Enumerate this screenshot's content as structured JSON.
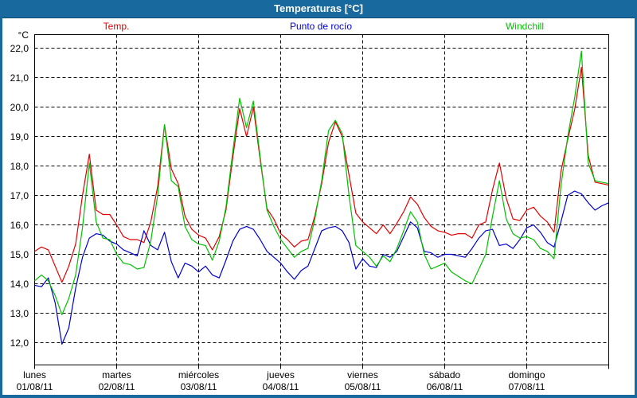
{
  "window": {
    "title": "Temperaturas [°C]"
  },
  "legend": {
    "position": "top",
    "items": [
      {
        "label": "Temp.",
        "color": "#e10000"
      },
      {
        "label": "Punto de rocío",
        "color": "#0000cc"
      },
      {
        "label": "Windchill",
        "color": "#00c000"
      }
    ]
  },
  "frame_color": "#17699e",
  "chart_data": {
    "type": "line",
    "title": "Temperaturas [°C]",
    "ylabel": "°C",
    "ylim": [
      12,
      22
    ],
    "yticks": [
      22,
      21,
      20,
      19,
      18,
      17,
      16,
      15,
      14,
      13,
      12
    ],
    "ytick_labels": [
      "22,0",
      "21,0",
      "20,0",
      "19,0",
      "18,0",
      "17,0",
      "16,0",
      "15,0",
      "14,0",
      "13,0",
      "12,0"
    ],
    "grid": "dashed",
    "legend_position": "top",
    "x_start_hour": 0,
    "x_end_hour": 168,
    "sample_interval_hours": 2,
    "days": [
      {
        "name": "lunes",
        "date": "01/08/11"
      },
      {
        "name": "martes",
        "date": "02/08/11"
      },
      {
        "name": "miércoles",
        "date": "03/08/11"
      },
      {
        "name": "jueves",
        "date": "04/08/11"
      },
      {
        "name": "viernes",
        "date": "05/08/11"
      },
      {
        "name": "sábado",
        "date": "06/08/11"
      },
      {
        "name": "domingo",
        "date": "07/08/11"
      }
    ],
    "series": [
      {
        "name": "Temp.",
        "color": "#e10000",
        "values": [
          15.1,
          15.25,
          15.15,
          14.6,
          14.05,
          14.6,
          15.35,
          17.0,
          18.4,
          16.5,
          16.35,
          16.35,
          16.0,
          15.6,
          15.5,
          15.5,
          15.4,
          16.1,
          17.3,
          19.4,
          17.9,
          17.4,
          16.3,
          15.85,
          15.65,
          15.55,
          15.15,
          15.6,
          16.5,
          18.3,
          19.95,
          19.0,
          20.0,
          18.2,
          16.55,
          16.2,
          15.7,
          15.5,
          15.25,
          15.45,
          15.5,
          16.3,
          17.4,
          18.8,
          19.5,
          19.0,
          17.7,
          16.4,
          16.1,
          15.9,
          15.7,
          16.0,
          15.7,
          16.05,
          16.45,
          16.95,
          16.7,
          16.25,
          15.95,
          15.8,
          15.75,
          15.65,
          15.7,
          15.7,
          15.55,
          16.0,
          16.1,
          17.2,
          18.1,
          16.9,
          16.2,
          16.15,
          16.5,
          16.6,
          16.3,
          16.1,
          15.75,
          17.8,
          18.9,
          19.9,
          21.35,
          18.35,
          17.45,
          17.4,
          17.35
        ]
      },
      {
        "name": "Punto de rocío",
        "color": "#0000cc",
        "values": [
          13.95,
          13.9,
          14.2,
          13.35,
          11.95,
          12.5,
          13.85,
          14.9,
          15.55,
          15.7,
          15.65,
          15.45,
          15.35,
          15.15,
          15.05,
          14.95,
          15.8,
          15.3,
          15.15,
          15.75,
          14.75,
          14.2,
          14.7,
          14.6,
          14.4,
          14.6,
          14.3,
          14.2,
          14.8,
          15.45,
          15.85,
          15.95,
          15.85,
          15.5,
          15.1,
          14.9,
          14.7,
          14.4,
          14.15,
          14.45,
          14.6,
          15.2,
          15.8,
          15.9,
          15.95,
          15.8,
          15.4,
          14.5,
          14.85,
          14.6,
          14.55,
          15.0,
          14.9,
          15.1,
          15.6,
          16.1,
          15.9,
          15.1,
          15.05,
          14.9,
          15.0,
          15.0,
          14.95,
          14.9,
          15.2,
          15.55,
          15.8,
          15.85,
          15.3,
          15.35,
          15.2,
          15.5,
          15.9,
          16.0,
          15.75,
          15.4,
          15.25,
          16.1,
          17.0,
          17.15,
          17.05,
          16.75,
          16.5,
          16.65,
          16.75
        ]
      },
      {
        "name": "Windchill",
        "color": "#00c000",
        "values": [
          14.1,
          14.3,
          14.1,
          13.6,
          12.95,
          13.5,
          14.3,
          15.9,
          18.1,
          16.1,
          15.55,
          15.5,
          15.0,
          14.7,
          14.65,
          14.5,
          14.55,
          15.45,
          17.0,
          19.4,
          17.5,
          17.3,
          15.95,
          15.5,
          15.35,
          15.3,
          14.8,
          15.45,
          16.6,
          18.5,
          20.3,
          19.3,
          20.2,
          18.3,
          16.5,
          15.95,
          15.5,
          15.2,
          14.9,
          15.1,
          15.2,
          16.2,
          17.5,
          19.2,
          19.55,
          19.1,
          17.0,
          15.3,
          15.1,
          14.9,
          14.6,
          14.95,
          14.75,
          15.2,
          15.8,
          16.45,
          16.1,
          15.0,
          14.5,
          14.6,
          14.7,
          14.4,
          14.25,
          14.1,
          14.0,
          14.5,
          15.0,
          16.3,
          17.5,
          16.2,
          15.7,
          15.55,
          15.6,
          15.5,
          15.2,
          15.1,
          14.85,
          17.3,
          19.0,
          20.3,
          21.9,
          18.1,
          17.5,
          17.45,
          17.4
        ]
      }
    ]
  }
}
